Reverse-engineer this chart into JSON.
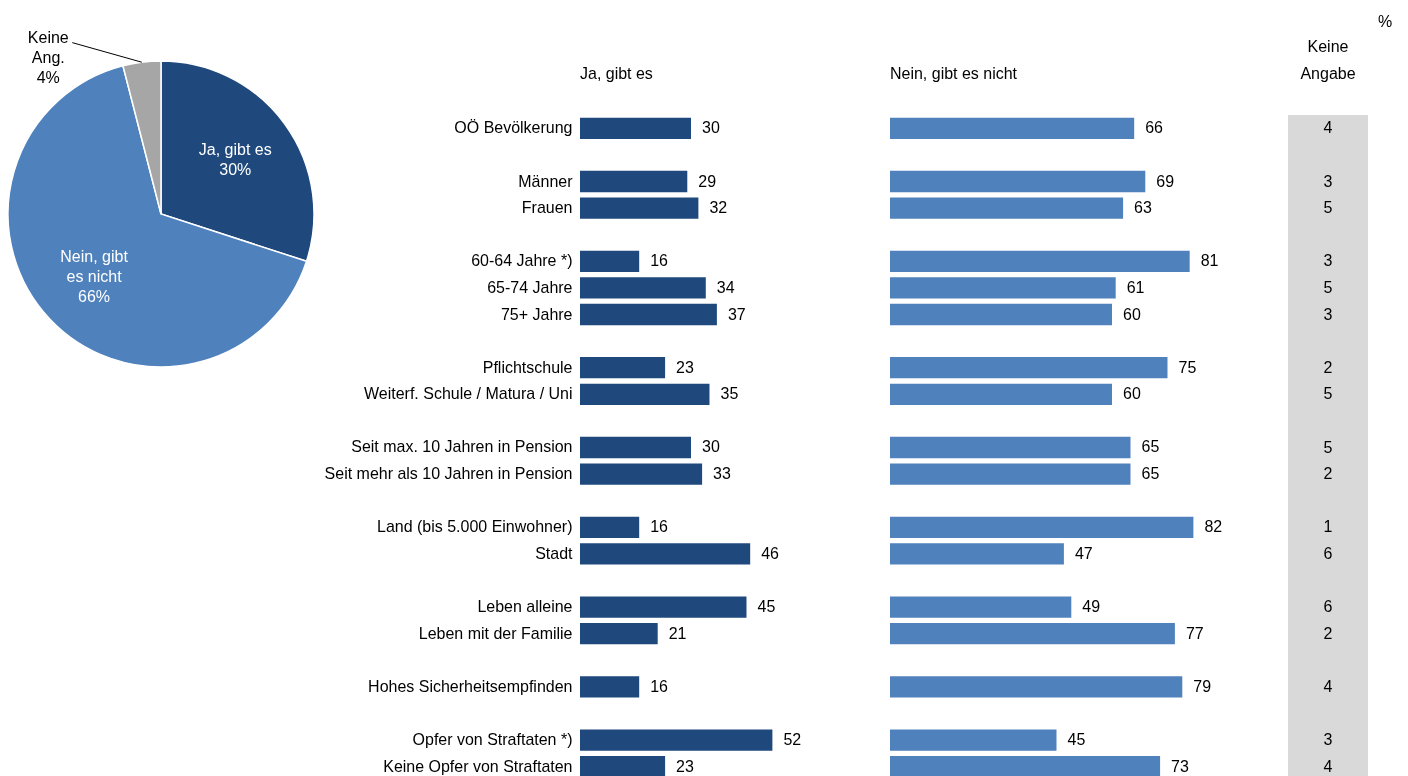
{
  "chart_data": [
    {
      "type": "pie",
      "categories": [
        "Ja, gibt es",
        "Nein, gibt es nicht",
        "Keine Ang."
      ],
      "values": [
        30,
        66,
        4
      ],
      "colors": [
        "#1f497d",
        "#4f81bd",
        "#a6a6a6"
      ],
      "value_labels": [
        "30%",
        "66%",
        "4%"
      ]
    },
    {
      "type": "bar",
      "orientation": "horizontal",
      "title": "Ja, gibt es",
      "tick_labels": "y",
      "data_labels": true,
      "color": "#1f497d",
      "categories": [
        "OÖ Bevölkerung",
        null,
        "Männer",
        "Frauen",
        null,
        "60-64 Jahre *)",
        "65-74 Jahre",
        "75+ Jahre",
        null,
        "Pflichtschule",
        "Weiterf. Schule / Matura / Uni",
        null,
        "Seit max. 10 Jahren in Pension",
        "Seit mehr als 10 Jahren in Pension",
        null,
        "Land (bis 5.000 Einwohner)",
        "Stadt",
        null,
        "Leben alleine",
        "Leben mit der Familie",
        null,
        "Hohes Sicherheitsempfinden",
        null,
        "Opfer von Straftaten *)",
        "Keine Opfer von Straftaten"
      ],
      "values": [
        30,
        null,
        29,
        32,
        null,
        16,
        34,
        37,
        null,
        23,
        35,
        null,
        30,
        33,
        null,
        16,
        46,
        null,
        45,
        21,
        null,
        16,
        null,
        52,
        23
      ]
    },
    {
      "type": "bar",
      "orientation": "horizontal",
      "title": "Nein, gibt es nicht",
      "tick_labels": false,
      "data_labels": true,
      "color": "#4f81bd",
      "categories": [
        null,
        null,
        null,
        null,
        null,
        null,
        null,
        null,
        null,
        null,
        null,
        null,
        null,
        null,
        null,
        null,
        null,
        null,
        null,
        null,
        null,
        null,
        null,
        null,
        null
      ],
      "values": [
        66,
        null,
        69,
        63,
        null,
        81,
        61,
        60,
        null,
        75,
        60,
        null,
        65,
        65,
        null,
        82,
        47,
        null,
        49,
        77,
        null,
        79,
        null,
        45,
        73
      ]
    },
    {
      "type": "other",
      "title": "Keine Angabe",
      "color": "#d9d9d9",
      "data_labels": true,
      "annotations": [
        "%"
      ],
      "categories": [
        null,
        null,
        null,
        null,
        null,
        null,
        null,
        null,
        null,
        null,
        null,
        null,
        null,
        null,
        null,
        null,
        null,
        null,
        null,
        null,
        null,
        null,
        null,
        null,
        null
      ],
      "values": [
        4,
        null,
        3,
        5,
        null,
        3,
        5,
        3,
        null,
        2,
        5,
        null,
        5,
        2,
        null,
        1,
        6,
        null,
        6,
        2,
        null,
        4,
        null,
        3,
        4
      ]
    }
  ]
}
